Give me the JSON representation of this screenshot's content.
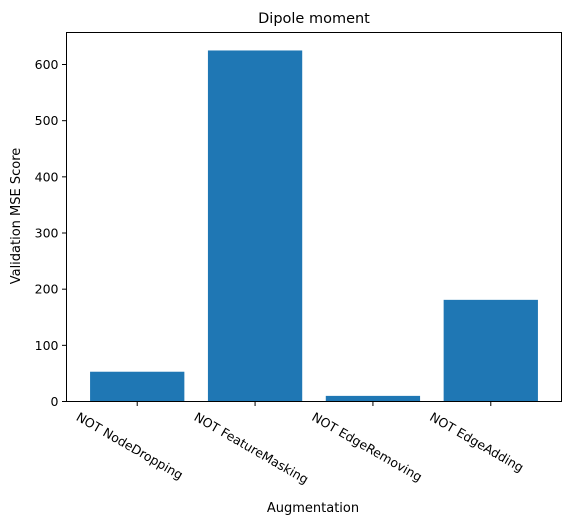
{
  "chart_data": {
    "type": "bar",
    "title": "Dipole moment",
    "xlabel": "Augmentation",
    "ylabel": "Validation MSE Score",
    "categories": [
      "NOT NodeDropping",
      "NOT FeatureMasking",
      "NOT EdgeRemoving",
      "NOT EdgeAdding"
    ],
    "values": [
      53,
      625,
      10,
      181
    ],
    "ylim": [
      0,
      657
    ],
    "yticks": [
      0,
      100,
      200,
      300,
      400,
      500,
      600
    ],
    "bar_color": "#1f77b4",
    "grid": false,
    "legend": "none"
  }
}
